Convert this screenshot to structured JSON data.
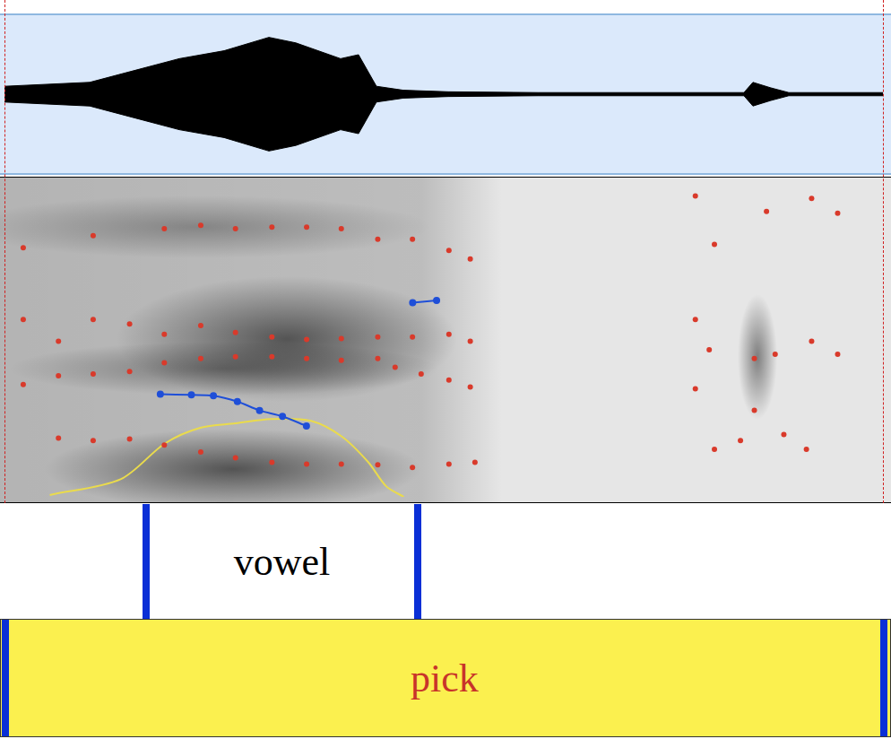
{
  "chart_data": [
    {
      "type": "area",
      "x": [
        0,
        0.0485,
        0.074,
        0.0995,
        0.125,
        0.1505,
        0.1658,
        0.1913,
        0.2015,
        0.2117,
        0.227,
        0.2526,
        0.3036,
        0.4209,
        0.426,
        0.4362,
        0.4464,
        0.5
      ],
      "series": [
        {
          "color": "#000000",
          "values": [
            0.1,
            0.15,
            0.3,
            0.45,
            0.55,
            0.72,
            0.65,
            0.45,
            0.5,
            0.1,
            0.05,
            0.03,
            0.02,
            0.02,
            0.15,
            0.08,
            0.02,
            0.02
          ]
        },
        {
          "color": "#000000",
          "values": [
            -0.1,
            -0.15,
            -0.3,
            -0.45,
            -0.55,
            -0.72,
            -0.65,
            -0.45,
            -0.5,
            -0.1,
            -0.05,
            -0.03,
            -0.02,
            -0.02,
            -0.15,
            -0.08,
            -0.02,
            -0.02
          ]
        }
      ],
      "xlim": [
        0,
        0.5
      ],
      "ylim": [
        -1,
        1
      ],
      "tick_labels": false
    },
    {
      "type": "scatter",
      "series": [
        {
          "color": "#d93a2b",
          "marker": "circle",
          "x": [
            0.028,
            0.048,
            0.069,
            0.089,
            0.11,
            0.13,
            0.151,
            0.171,
            0.191,
            0.212,
            0.232,
            0.253,
            0.268
          ],
          "values": [
            937,
            895,
            923,
            826,
            716,
            620,
            551,
            523,
            523,
            510,
            468,
            523,
            551
          ]
        },
        {
          "color": "#d93a2b",
          "marker": "circle",
          "x": [
            0.0077,
            0.028,
            0.048,
            0.069,
            0.089,
            0.11,
            0.13,
            0.151,
            0.171,
            0.191,
            0.212,
            0.222,
            0.237,
            0.253,
            0.2653
          ],
          "values": [
            1791,
            1928,
            1956,
            1997,
            2135,
            2204,
            2231,
            2231,
            2204,
            2176,
            2204,
            2066,
            1956,
            1860,
            1749
          ]
        },
        {
          "color": "#d93a2b",
          "marker": "circle",
          "x": [
            0.0077,
            0.028,
            0.048,
            0.069,
            0.089,
            0.11,
            0.13,
            0.151,
            0.171,
            0.191,
            0.212,
            0.232,
            0.253,
            0.2653
          ],
          "values": [
            2824,
            2479,
            2824,
            2755,
            2590,
            2727,
            2617,
            2548,
            2507,
            2521,
            2548,
            2548,
            2590,
            2479
          ]
        },
        {
          "color": "#d93a2b",
          "marker": "circle",
          "x": [
            0.0077,
            0.048,
            0.089,
            0.11,
            0.13,
            0.151,
            0.171,
            0.191,
            0.212,
            0.232,
            0.253,
            0.2653
          ],
          "values": [
            3967,
            4160,
            4270,
            4325,
            4270,
            4298,
            4298,
            4270,
            4105,
            4105,
            3926,
            3788
          ]
        },
        {
          "color": "#d93a2b",
          "marker": "circle",
          "x": [
            0.395,
            0.406,
            0.395,
            0.403,
            0.395,
            0.429,
            0.441,
            0.462,
            0.477,
            0.429,
            0.446,
            0.459,
            0.406,
            0.421,
            0.436,
            0.462,
            0.477
          ],
          "values": [
            4793,
            4022,
            2824,
            2342,
            1722,
            2204,
            2273,
            2479,
            2273,
            1377,
            992,
            758,
            758,
            895,
            4545,
            4752,
            4518
          ]
        },
        {
          "type": "line",
          "color": "#1f4fd8",
          "marker": "circle",
          "axis": "y2",
          "x": [
            0.0867,
            0.1046,
            0.1173,
            0.1311,
            0.1439,
            0.1571,
            0.1709
          ],
          "values": [
            214,
            213,
            212,
            204,
            192,
            184,
            171
          ]
        },
        {
          "type": "line",
          "color": "#1f4fd8",
          "marker": "circle",
          "axis": "y2",
          "x": [
            0.2321,
            0.2459
          ],
          "values": [
            338,
            341
          ]
        },
        {
          "type": "line",
          "color": "#eadb4c",
          "marker": "none",
          "axis": "y3",
          "x": [
            0.023,
            0.0638,
            0.0893,
            0.1097,
            0.1301,
            0.1505,
            0.1735,
            0.1913,
            0.2066,
            0.2168,
            0.227
          ],
          "values": [
            50.3,
            52.8,
            58.5,
            61.0,
            61.7,
            62.4,
            62.1,
            59.6,
            55.5,
            51.7,
            50
          ]
        }
      ],
      "xlim": [
        0,
        0.5
      ],
      "ylim": [
        0,
        5000
      ],
      "y2lim": [
        75,
        500
      ],
      "y3lim": [
        50,
        100
      ],
      "tick_labels": false
    }
  ],
  "textgrid": {
    "tiers": [
      {
        "intervals": [
          {
            "start": 0.0806,
            "end": 0.2352,
            "label": "vowel",
            "color": "#000000"
          }
        ]
      },
      {
        "intervals": [
          {
            "start": 0,
            "end": 0.5,
            "label": "pick",
            "color": "#c8342a"
          }
        ]
      }
    ]
  }
}
